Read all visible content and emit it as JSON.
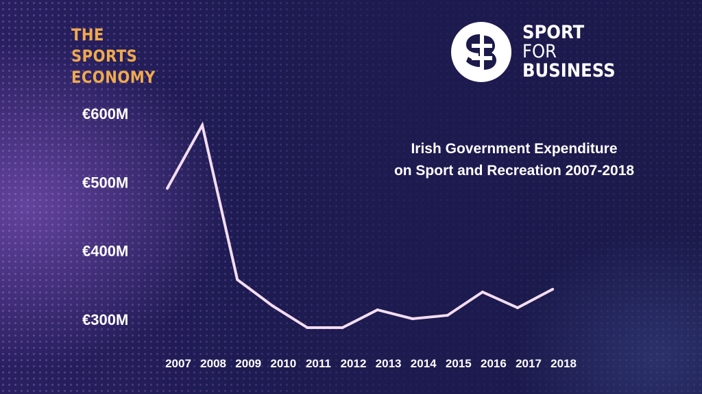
{
  "brand_left": {
    "lines": [
      "THE",
      "SPORTS",
      "ECONOMY"
    ]
  },
  "brand_right": {
    "lines": [
      "SPORT",
      "FOR",
      "BUSINESS"
    ]
  },
  "colors": {
    "background": "#1c1a4a",
    "accent_orange": "#f0a94d",
    "line": "#f4ddf0",
    "text": "#ffffff"
  },
  "chart_data": {
    "type": "line",
    "title": "Irish Government Expenditure on Sport and Recreation 2007-2018",
    "title_lines": [
      "Irish Government Expenditure",
      "on Sport and Recreation 2007-2018"
    ],
    "xlabel": "",
    "ylabel": "",
    "categories": [
      "2007",
      "2008",
      "2009",
      "2010",
      "2011",
      "2012",
      "2013",
      "2014",
      "2015",
      "2016",
      "2017",
      "2018"
    ],
    "y_ticks": [
      {
        "value": 600,
        "label": "€600M"
      },
      {
        "value": 500,
        "label": "€500M"
      },
      {
        "value": 400,
        "label": "€400M"
      },
      {
        "value": 300,
        "label": "€300M"
      }
    ],
    "ylim": [
      300,
      600
    ],
    "grid": false,
    "legend": "none",
    "series": [
      {
        "values": [
          491,
          583,
          358,
          320,
          288,
          288,
          314,
          301,
          306,
          340,
          317,
          344
        ]
      }
    ]
  }
}
